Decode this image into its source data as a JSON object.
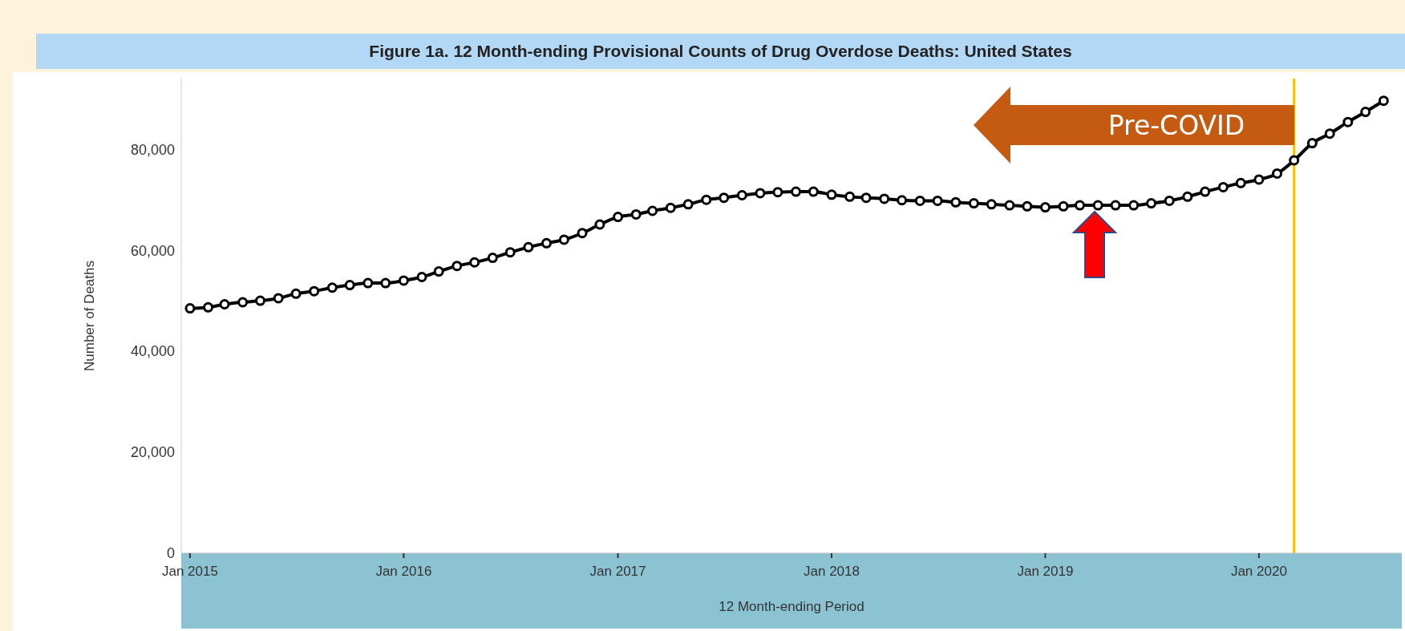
{
  "chart_data": {
    "type": "line",
    "title": "Figure 1a. 12 Month-ending Provisional Counts of Drug Overdose Deaths: United States",
    "xlabel": "12 Month-ending Period",
    "ylabel": "Number of Deaths",
    "x": [
      "2015-01",
      "2015-02",
      "2015-03",
      "2015-04",
      "2015-05",
      "2015-06",
      "2015-07",
      "2015-08",
      "2015-09",
      "2015-10",
      "2015-11",
      "2015-12",
      "2016-01",
      "2016-02",
      "2016-03",
      "2016-04",
      "2016-05",
      "2016-06",
      "2016-07",
      "2016-08",
      "2016-09",
      "2016-10",
      "2016-11",
      "2016-12",
      "2017-01",
      "2017-02",
      "2017-03",
      "2017-04",
      "2017-05",
      "2017-06",
      "2017-07",
      "2017-08",
      "2017-09",
      "2017-10",
      "2017-11",
      "2017-12",
      "2018-01",
      "2018-02",
      "2018-03",
      "2018-04",
      "2018-05",
      "2018-06",
      "2018-07",
      "2018-08",
      "2018-09",
      "2018-10",
      "2018-11",
      "2018-12",
      "2019-01",
      "2019-02",
      "2019-03",
      "2019-04",
      "2019-05",
      "2019-06",
      "2019-07",
      "2019-08",
      "2019-09",
      "2019-10",
      "2019-11",
      "2019-12",
      "2020-01",
      "2020-02",
      "2020-03",
      "2020-04",
      "2020-05",
      "2020-06",
      "2020-07",
      "2020-08"
    ],
    "series": [
      {
        "color": "#000000",
        "values": [
          48500,
          48700,
          49300,
          49700,
          50000,
          50500,
          51400,
          51900,
          52600,
          53100,
          53500,
          53500,
          54000,
          54700,
          55800,
          56900,
          57600,
          58500,
          59600,
          60600,
          61400,
          62100,
          63400,
          65100,
          66600,
          67100,
          67800,
          68400,
          69100,
          70000,
          70400,
          70900,
          71300,
          71500,
          71600,
          71600,
          71000,
          70600,
          70400,
          70200,
          69900,
          69800,
          69800,
          69500,
          69300,
          69100,
          68900,
          68700,
          68500,
          68700,
          68900,
          68900,
          68900,
          68900,
          69300,
          69800,
          70600,
          71600,
          72500,
          73300,
          74000,
          75200,
          77800,
          81200,
          83100,
          85400,
          87400,
          89600
        ]
      }
    ],
    "xlim": [
      "2014-12-17",
      "2020-09-01"
    ],
    "xticks": [
      {
        "value": "2015-01",
        "label": "Jan 2015"
      },
      {
        "value": "2016-01",
        "label": "Jan 2016"
      },
      {
        "value": "2017-01",
        "label": "Jan 2017"
      },
      {
        "value": "2018-01",
        "label": "Jan 2018"
      },
      {
        "value": "2019-01",
        "label": "Jan 2019"
      },
      {
        "value": "2020-01",
        "label": "Jan 2020"
      }
    ],
    "ylim": [
      0,
      94000
    ],
    "yticks": [
      0,
      {
        "value": 20000,
        "label": "20,000"
      },
      {
        "value": 40000,
        "label": "40,000"
      },
      {
        "value": 60000,
        "label": "60,000"
      },
      {
        "value": 80000,
        "label": "80,000"
      }
    ],
    "ref_lines": [
      {
        "axis": "x",
        "value": "2020-03",
        "label": "Pre-COVID",
        "color": "#ffc000"
      }
    ],
    "marker": "circle",
    "line_style": "solid"
  }
}
